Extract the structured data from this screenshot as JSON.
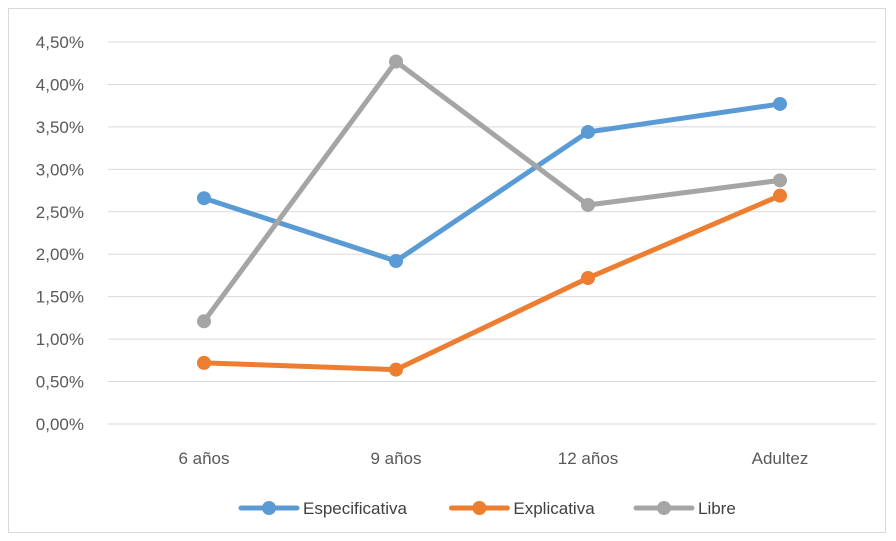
{
  "chart_data": {
    "type": "line",
    "categories": [
      "6 años",
      "9 años",
      "12 años",
      "Adultez"
    ],
    "series": [
      {
        "name": "Especificativa",
        "color": "#5B9BD5",
        "values": [
          2.66,
          1.92,
          3.44,
          3.77
        ]
      },
      {
        "name": "Explicativa",
        "color": "#ED7D31",
        "values": [
          0.72,
          0.64,
          1.72,
          2.69
        ]
      },
      {
        "name": "Libre",
        "color": "#A5A5A5",
        "values": [
          1.21,
          4.27,
          2.58,
          2.87
        ]
      }
    ],
    "ylim": [
      0,
      4.5
    ],
    "ytick_step": 0.5,
    "ytick_labels": [
      "0,00%",
      "0,50%",
      "1,00%",
      "1,50%",
      "2,00%",
      "2,50%",
      "3,00%",
      "3,50%",
      "4,00%",
      "4,50%"
    ],
    "grid": true,
    "gridline_color": "#d9d9d9",
    "legend_position": "bottom"
  }
}
